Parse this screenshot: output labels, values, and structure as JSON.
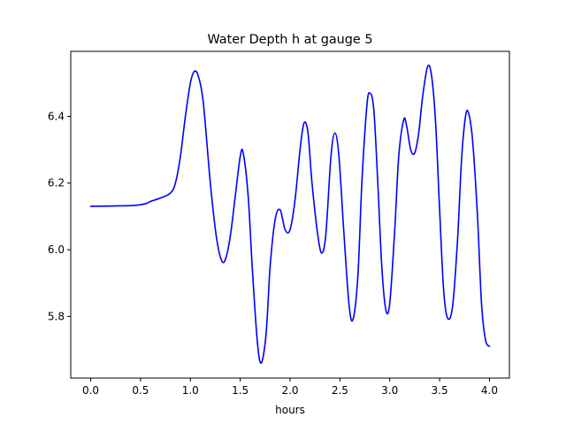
{
  "chart_data": {
    "type": "line",
    "title": "Water Depth h at gauge 5",
    "xlabel": "hours",
    "ylabel": "",
    "xlim": [
      -0.2,
      4.2
    ],
    "ylim": [
      5.615,
      6.595
    ],
    "xticks": [
      0.0,
      0.5,
      1.0,
      1.5,
      2.0,
      2.5,
      3.0,
      3.5,
      4.0
    ],
    "xtick_labels": [
      "0.0",
      "0.5",
      "1.0",
      "1.5",
      "2.0",
      "2.5",
      "3.0",
      "3.5",
      "4.0"
    ],
    "yticks": [
      5.8,
      6.0,
      6.2,
      6.4
    ],
    "ytick_labels": [
      "5.8",
      "6.0",
      "6.2",
      "6.4"
    ],
    "grid": false,
    "legend": "none",
    "series": [
      {
        "color": "#0000ff",
        "x": [
          0.0,
          0.2,
          0.45,
          0.55,
          0.6,
          0.7,
          0.8,
          0.85,
          0.9,
          0.95,
          1.0,
          1.04,
          1.08,
          1.13,
          1.2,
          1.26,
          1.31,
          1.35,
          1.4,
          1.45,
          1.5,
          1.53,
          1.58,
          1.62,
          1.67,
          1.71,
          1.76,
          1.8,
          1.85,
          1.9,
          1.95,
          2.0,
          2.05,
          2.1,
          2.14,
          2.18,
          2.22,
          2.28,
          2.32,
          2.36,
          2.41,
          2.45,
          2.49,
          2.54,
          2.59,
          2.63,
          2.68,
          2.72,
          2.77,
          2.8,
          2.84,
          2.88,
          2.92,
          2.96,
          3.0,
          3.05,
          3.09,
          3.14,
          3.17,
          3.21,
          3.25,
          3.29,
          3.33,
          3.38,
          3.42,
          3.46,
          3.5,
          3.54,
          3.58,
          3.63,
          3.68,
          3.72,
          3.76,
          3.79,
          3.83,
          3.88,
          3.92,
          3.96,
          4.0
        ],
        "y": [
          6.13,
          6.131,
          6.133,
          6.138,
          6.145,
          6.155,
          6.17,
          6.2,
          6.28,
          6.4,
          6.5,
          6.535,
          6.52,
          6.44,
          6.2,
          6.04,
          5.97,
          5.97,
          6.04,
          6.16,
          6.28,
          6.29,
          6.16,
          5.95,
          5.73,
          5.66,
          5.75,
          5.95,
          6.09,
          6.12,
          6.06,
          6.06,
          6.15,
          6.3,
          6.38,
          6.35,
          6.2,
          6.04,
          5.99,
          6.05,
          6.28,
          6.35,
          6.28,
          6.05,
          5.84,
          5.79,
          5.92,
          6.2,
          6.43,
          6.47,
          6.42,
          6.2,
          5.95,
          5.82,
          5.84,
          6.06,
          6.28,
          6.39,
          6.37,
          6.3,
          6.29,
          6.35,
          6.46,
          6.55,
          6.52,
          6.38,
          6.12,
          5.88,
          5.795,
          5.83,
          6.03,
          6.27,
          6.4,
          6.41,
          6.33,
          6.1,
          5.84,
          5.73,
          5.71
        ]
      }
    ]
  }
}
